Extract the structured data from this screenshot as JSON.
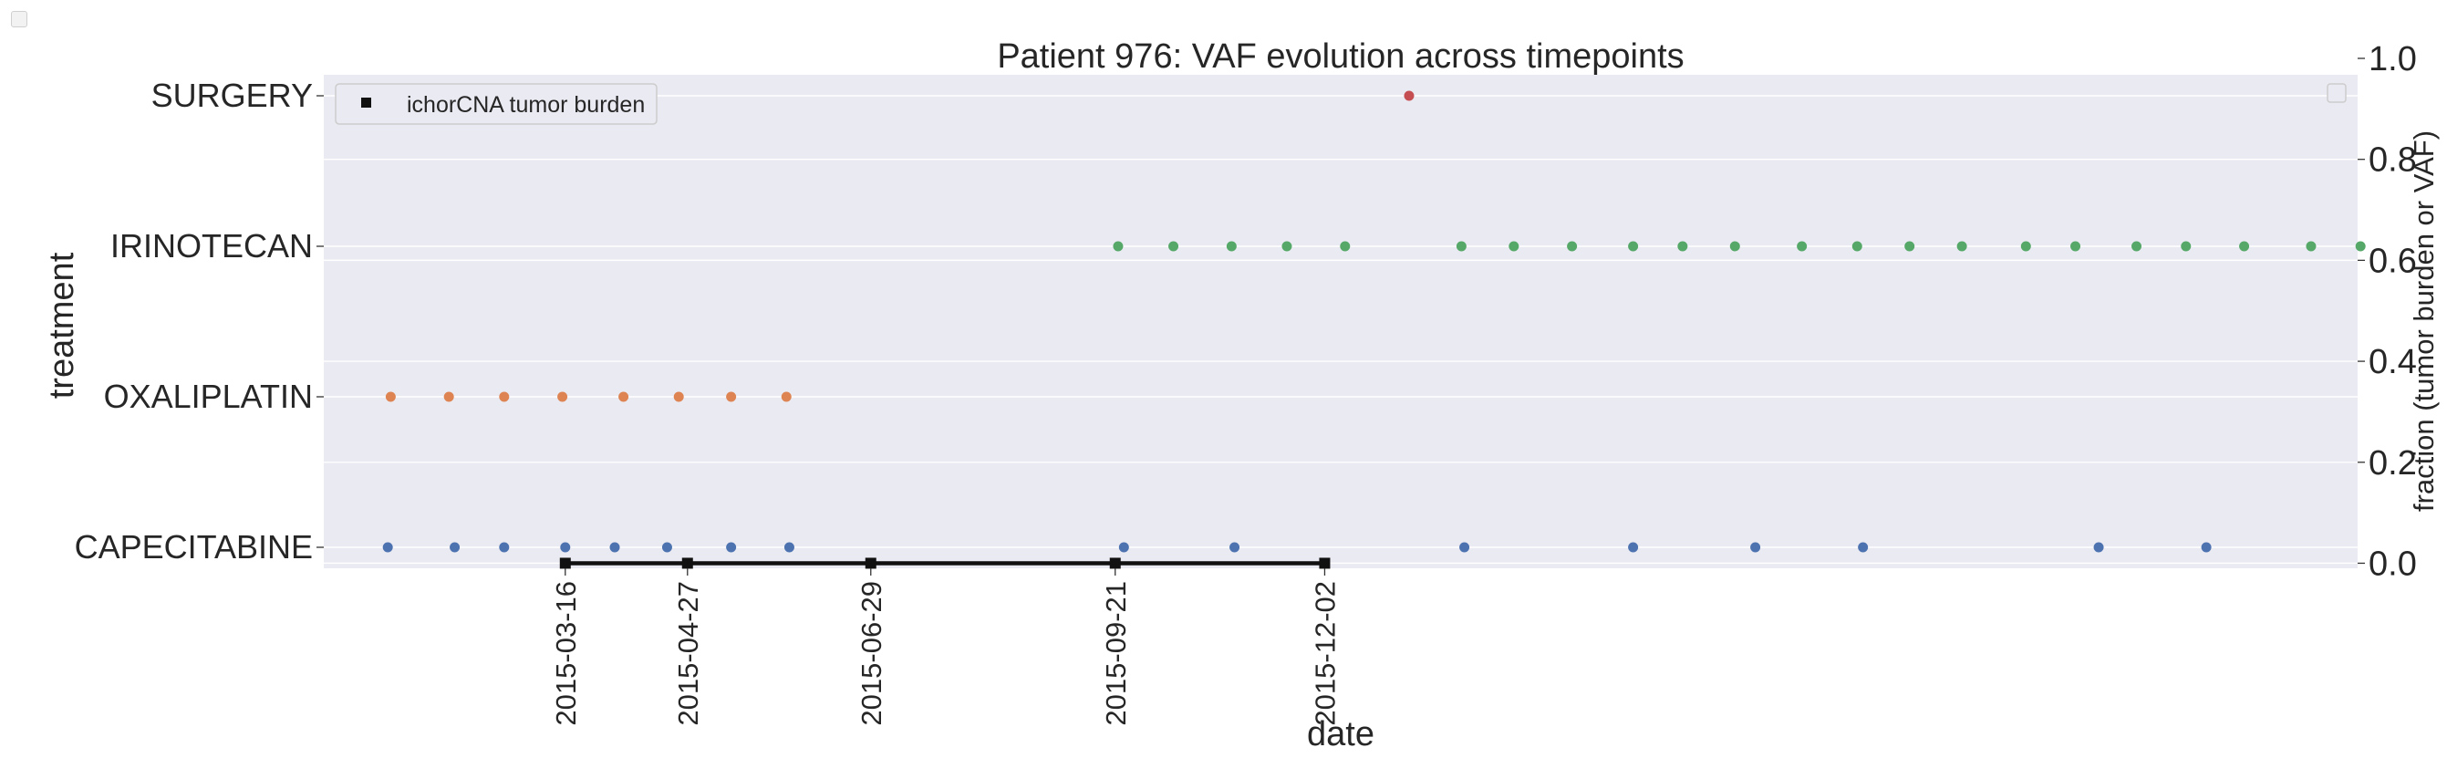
{
  "chart_data": {
    "type": "scatter",
    "title": "Patient 976: VAF evolution across timepoints",
    "xlabel": "date",
    "ylabel_left": "treatment",
    "ylabel_right": "fraction (tumor burden or VAF)",
    "x_domain": [
      "2014-12-23",
      "2016-11-21"
    ],
    "x_ticks": [
      "2015-03-16",
      "2015-04-27",
      "2015-06-29",
      "2015-09-21",
      "2015-12-02"
    ],
    "y_left_categories": [
      "CAPECITABINE",
      "OXALIPLATIN",
      "IRINOTECAN",
      "SURGERY"
    ],
    "y_right_ticks": [
      "0.0",
      "0.2",
      "0.4",
      "0.6",
      "0.8",
      "1.0"
    ],
    "y_right_lim": [
      -0.01,
      1.0
    ],
    "grid": true,
    "legend": {
      "position": "top-left",
      "entries": [
        "ichorCNA tumor burden"
      ]
    },
    "legend_right": {
      "position": "top-right",
      "entries": []
    },
    "colors": {
      "background": "#eaeaf2",
      "grid": "#ffffff",
      "CAPECITABINE": "#4c72b0",
      "OXALIPLATIN": "#dd8452",
      "IRINOTECAN": "#55a868",
      "SURGERY": "#c44e52",
      "tumor_burden": "#111111"
    },
    "treatment_series": [
      {
        "name": "CAPECITABINE",
        "dates": [
          "2015-01-14",
          "2015-02-06",
          "2015-02-23",
          "2015-03-16",
          "2015-04-02",
          "2015-04-20",
          "2015-05-12",
          "2015-06-01",
          "2015-09-24",
          "2015-11-01",
          "2016-01-19",
          "2016-03-17",
          "2016-04-28",
          "2016-06-04",
          "2016-08-24",
          "2016-09-30"
        ]
      },
      {
        "name": "OXALIPLATIN",
        "dates": [
          "2015-01-15",
          "2015-02-04",
          "2015-02-23",
          "2015-03-15",
          "2015-04-05",
          "2015-04-24",
          "2015-05-12",
          "2015-05-31"
        ]
      },
      {
        "name": "IRINOTECAN",
        "dates": [
          "2015-09-22",
          "2015-10-11",
          "2015-10-31",
          "2015-11-19",
          "2015-12-09",
          "2016-01-18",
          "2016-02-05",
          "2016-02-25",
          "2016-03-17",
          "2016-04-03",
          "2016-04-21",
          "2016-05-14",
          "2016-06-02",
          "2016-06-20",
          "2016-07-08",
          "2016-07-30",
          "2016-08-16",
          "2016-09-06",
          "2016-09-23",
          "2016-10-13",
          "2016-11-05",
          "2016-11-22"
        ]
      },
      {
        "name": "SURGERY",
        "dates": [
          "2015-12-31"
        ]
      }
    ],
    "tumor_burden": {
      "name": "ichorCNA tumor burden",
      "dates": [
        "2015-03-16",
        "2015-04-27",
        "2015-06-29",
        "2015-09-21",
        "2015-12-02"
      ],
      "values": [
        0.0,
        0.0,
        0.0,
        0.0,
        0.0
      ]
    }
  }
}
